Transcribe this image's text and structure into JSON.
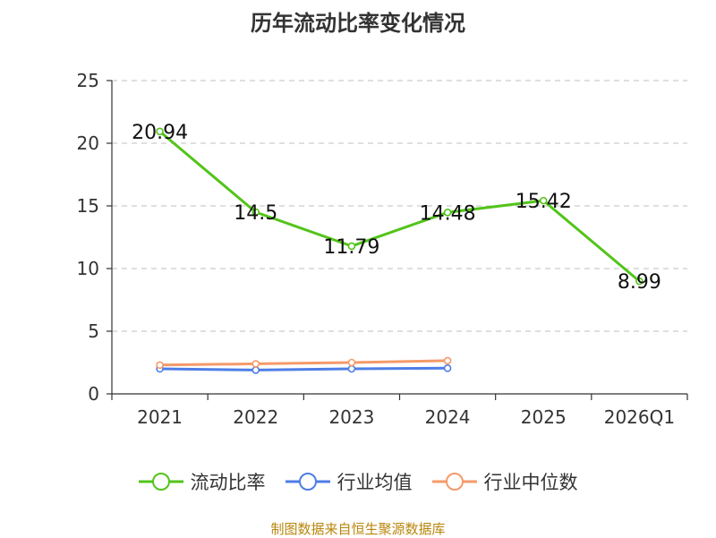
{
  "chart_data": {
    "type": "line",
    "title": "历年流动比率变化情况",
    "categories": [
      "2021",
      "2022",
      "2023",
      "2024",
      "2025",
      "2026Q1"
    ],
    "ylim": [
      0,
      25
    ],
    "yticks": [
      0,
      5,
      10,
      15,
      20,
      25
    ],
    "grid": true,
    "legend_position": "bottom",
    "series": [
      {
        "name": "流动比率",
        "color": "#52c41a",
        "labels": true,
        "values": [
          20.94,
          14.5,
          11.79,
          14.48,
          15.42,
          8.99
        ]
      },
      {
        "name": "行业均值",
        "color": "#4e7ee6",
        "labels": false,
        "values": [
          2.0,
          1.9,
          2.0,
          2.05,
          null,
          null
        ]
      },
      {
        "name": "行业中位数",
        "color": "#f59a6a",
        "labels": false,
        "values": [
          2.3,
          2.4,
          2.5,
          2.65,
          null,
          null
        ]
      }
    ]
  },
  "footer": {
    "source": "制图数据来自恒生聚源数据库"
  }
}
